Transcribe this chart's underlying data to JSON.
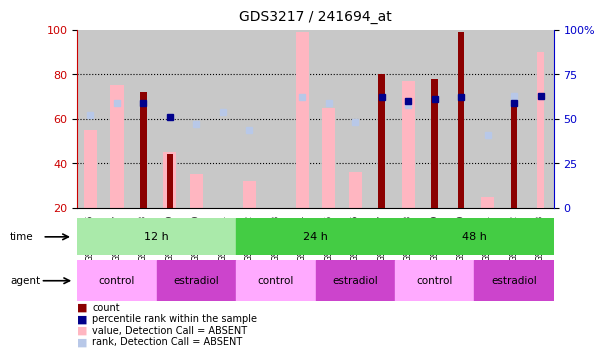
{
  "title": "GDS3217 / 241694_at",
  "samples": [
    "GSM286756",
    "GSM286757",
    "GSM286758",
    "GSM286759",
    "GSM286760",
    "GSM286761",
    "GSM286762",
    "GSM286763",
    "GSM286764",
    "GSM286765",
    "GSM286766",
    "GSM286767",
    "GSM286768",
    "GSM286769",
    "GSM286770",
    "GSM286771",
    "GSM286772",
    "GSM286773"
  ],
  "count_values": [
    null,
    null,
    72,
    44,
    null,
    null,
    null,
    null,
    null,
    null,
    null,
    80,
    null,
    78,
    99,
    null,
    66,
    null
  ],
  "count_absent": [
    null,
    null,
    null,
    null,
    null,
    null,
    null,
    null,
    null,
    null,
    null,
    null,
    null,
    null,
    null,
    null,
    null,
    90
  ],
  "value_absent": [
    55,
    75,
    null,
    45,
    35,
    null,
    32,
    null,
    99,
    65,
    36,
    null,
    77,
    null,
    null,
    25,
    null,
    null
  ],
  "rank_absent": [
    52,
    59,
    null,
    51,
    47,
    54,
    44,
    null,
    62,
    59,
    48,
    null,
    58,
    null,
    null,
    41,
    63,
    null
  ],
  "percentile_rank": [
    null,
    null,
    59,
    51,
    null,
    null,
    null,
    null,
    null,
    null,
    null,
    62,
    60,
    61,
    62,
    null,
    59,
    63
  ],
  "ylim_left": [
    20,
    100
  ],
  "ylim_right": [
    0,
    100
  ],
  "yticks_left": [
    20,
    40,
    60,
    80,
    100
  ],
  "yticks_right": [
    0,
    25,
    50,
    75,
    100
  ],
  "ytick_right_labels": [
    "0",
    "25",
    "50",
    "75",
    "100%"
  ],
  "time_groups": [
    {
      "label": "12 h",
      "start": 0,
      "end": 6
    },
    {
      "label": "24 h",
      "start": 6,
      "end": 12
    },
    {
      "label": "48 h",
      "start": 12,
      "end": 18
    }
  ],
  "time_colors": [
    "#AAEAAA",
    "#44CC44",
    "#44CC44"
  ],
  "agent_groups": [
    {
      "label": "control",
      "start": 0,
      "end": 3
    },
    {
      "label": "estradiol",
      "start": 3,
      "end": 6
    },
    {
      "label": "control",
      "start": 6,
      "end": 9
    },
    {
      "label": "estradiol",
      "start": 9,
      "end": 12
    },
    {
      "label": "control",
      "start": 12,
      "end": 15
    },
    {
      "label": "estradiol",
      "start": 15,
      "end": 18
    }
  ],
  "agent_colors": [
    "#FFAAFF",
    "#CC44CC",
    "#FFAAFF",
    "#CC44CC",
    "#FFAAFF",
    "#CC44CC"
  ],
  "colors": {
    "count": "#8B0000",
    "count_absent": "#CD5C5C",
    "value_absent": "#FFB6C1",
    "rank_absent": "#B8C8E8",
    "percentile_rank": "#00008B",
    "axis_left": "#CC0000",
    "axis_right": "#0000CC",
    "bg_sample": "#C8C8C8"
  },
  "bar_width": 0.5,
  "thin_bar_width": 0.25
}
